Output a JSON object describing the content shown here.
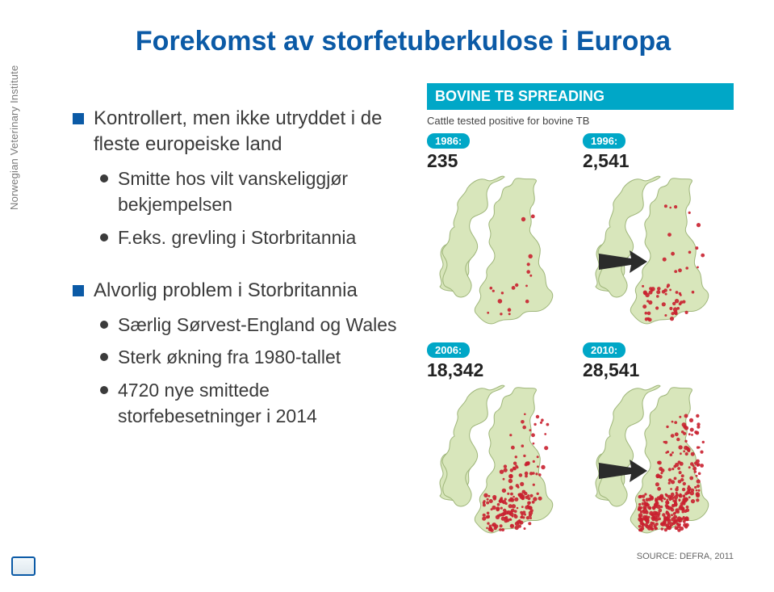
{
  "title": "Forekomst av storfetuberkulose i Europa",
  "left": {
    "group1": {
      "b1": "Kontrollert, men ikke utryddet i de fleste europeiske land",
      "s1": "Smitte hos vilt vanskeliggjør bekjempelsen",
      "s2": "F.eks. grevling i Storbritannia"
    },
    "group2": {
      "b1": "Alvorlig problem i Storbritannia",
      "s1": "Særlig Sørvest-England og Wales",
      "s2": "Sterk økning fra 1980-tallet",
      "s3": "4720 nye smittede storfebesetninger i 2014"
    }
  },
  "sidebar_label": "Norwegian Veterinary Institute",
  "infographic": {
    "title": "BOVINE TB SPREADING",
    "subtitle": "Cattle tested positive for bovine TB",
    "source": "SOURCE: DEFRA, 2011",
    "colors": {
      "accent": "#00a7c7",
      "land": "#d8e6bb",
      "outline": "#9fb67a",
      "dot": "#c9202f",
      "arrow": "#2b2b2b"
    },
    "panels": [
      {
        "year": "1986:",
        "count": "235"
      },
      {
        "year": "1996:",
        "count": "2,541"
      },
      {
        "year": "2006:",
        "count": "18,342"
      },
      {
        "year": "2010:",
        "count": "28,541"
      }
    ]
  }
}
